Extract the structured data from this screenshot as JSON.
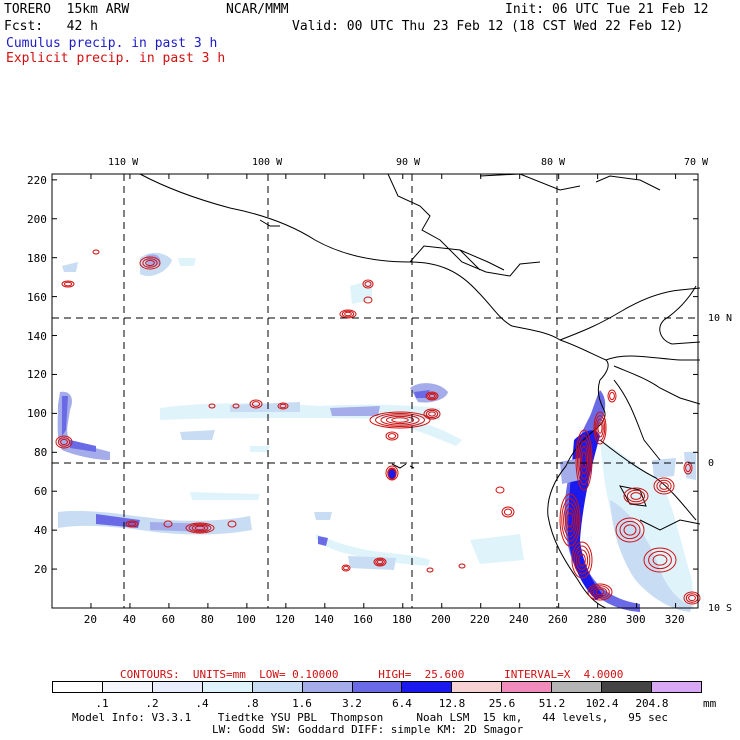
{
  "header": {
    "model": "TORERO  15km ARW",
    "org": "NCAR/MMM",
    "init": "Init: 06 UTC Tue 21 Feb 12",
    "fcst": "Fcst:   42 h",
    "valid": "Valid: 00 UTC Thu 23 Feb 12 (18 CST Wed 22 Feb 12)",
    "field1": "Cumulus precip. in past 3 h",
    "field2": "Explicit precip. in past 3 h"
  },
  "colors": {
    "field1": "#1c1cc8",
    "field2": "#d01010",
    "contour": "#d01010"
  },
  "map": {
    "lon_labels": [
      "110 W",
      "100 W",
      "90 W",
      "80 W",
      "70 W"
    ],
    "lat_labels": [
      "10 N",
      "0",
      "10 S"
    ],
    "x_ticks": [
      "20",
      "40",
      "60",
      "80",
      "100",
      "120",
      "140",
      "160",
      "180",
      "200",
      "220",
      "240",
      "260",
      "280",
      "300",
      "320"
    ],
    "y_ticks": [
      "20",
      "40",
      "60",
      "80",
      "100",
      "120",
      "140",
      "160",
      "180",
      "200",
      "220"
    ]
  },
  "contours": {
    "line": "CONTOURS:  UNITS=mm  LOW= 0.10000      HIGH=  25.600      INTERVAL=X  4.0000"
  },
  "colorbar": {
    "labels": [
      ".1",
      ".2",
      ".4",
      ".8",
      "1.6",
      "3.2",
      "6.4",
      "12.8",
      "25.6",
      "51.2",
      "102.4",
      "204.8"
    ],
    "unit": "mm",
    "colors": [
      "#ffffff",
      "#f4f6fc",
      "#e8eefb",
      "#dff3fb",
      "#c8dcf4",
      "#a4acea",
      "#6a6ae6",
      "#1a1aee",
      "#f6d2d2",
      "#f08cbc",
      "#b4b4b4",
      "#444444",
      "#d8a8f4"
    ]
  },
  "footer": {
    "line1": "Model Info: V3.3.1    Tiedtke YSU PBL  Thompson     Noah LSM  15 km,   44 levels,   95 sec",
    "line2": "LW: Godd SW: Goddard DIFF: simple KM: 2D Smagor"
  }
}
